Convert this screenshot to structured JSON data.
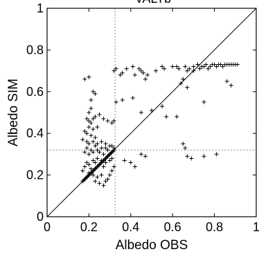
{
  "chart_data": {
    "type": "scatter",
    "title": "VALTb",
    "xlabel": "Albedo OBS",
    "ylabel": "Albedo SIM",
    "xlim": [
      0,
      1
    ],
    "ylim": [
      0,
      1
    ],
    "xticks": [
      0,
      0.2,
      0.4,
      0.6,
      0.8,
      1
    ],
    "yticks": [
      0,
      0.2,
      0.4,
      0.6,
      0.8,
      1
    ],
    "xtick_labels": [
      "0",
      "0.2",
      "0.4",
      "0.6",
      "0.8",
      "1"
    ],
    "ytick_labels": [
      "0",
      "0.2",
      "0.4",
      "0.6",
      "0.8",
      "1"
    ],
    "grid": false,
    "marker": "plus",
    "reference_line": {
      "type": "identity",
      "from": [
        0,
        0
      ],
      "to": [
        1,
        1
      ]
    },
    "mean_lines": {
      "x": 0.325,
      "y": 0.32,
      "style": "dotted"
    },
    "series": [
      {
        "points": [
          [
            0.18,
            0.66
          ],
          [
            0.2,
            0.67
          ],
          [
            0.32,
            0.7
          ],
          [
            0.33,
            0.71
          ],
          [
            0.35,
            0.68
          ],
          [
            0.36,
            0.69
          ],
          [
            0.38,
            0.71
          ],
          [
            0.41,
            0.72
          ],
          [
            0.42,
            0.68
          ],
          [
            0.44,
            0.71
          ],
          [
            0.45,
            0.7
          ],
          [
            0.46,
            0.69
          ],
          [
            0.47,
            0.66
          ],
          [
            0.48,
            0.68
          ],
          [
            0.52,
            0.7
          ],
          [
            0.55,
            0.72
          ],
          [
            0.56,
            0.71
          ],
          [
            0.6,
            0.72
          ],
          [
            0.62,
            0.72
          ],
          [
            0.63,
            0.71
          ],
          [
            0.66,
            0.72
          ],
          [
            0.67,
            0.7
          ],
          [
            0.68,
            0.71
          ],
          [
            0.7,
            0.72
          ],
          [
            0.72,
            0.73
          ],
          [
            0.73,
            0.71
          ],
          [
            0.74,
            0.72
          ],
          [
            0.75,
            0.72
          ],
          [
            0.76,
            0.73
          ],
          [
            0.77,
            0.71
          ],
          [
            0.78,
            0.72
          ],
          [
            0.79,
            0.73
          ],
          [
            0.8,
            0.73
          ],
          [
            0.81,
            0.72
          ],
          [
            0.82,
            0.73
          ],
          [
            0.83,
            0.73
          ],
          [
            0.84,
            0.72
          ],
          [
            0.85,
            0.73
          ],
          [
            0.86,
            0.73
          ],
          [
            0.87,
            0.73
          ],
          [
            0.88,
            0.73
          ],
          [
            0.89,
            0.73
          ],
          [
            0.9,
            0.73
          ],
          [
            0.91,
            0.73
          ],
          [
            0.64,
            0.64
          ],
          [
            0.65,
            0.66
          ],
          [
            0.67,
            0.62
          ],
          [
            0.7,
            0.7
          ],
          [
            0.75,
            0.55
          ],
          [
            0.86,
            0.65
          ],
          [
            0.88,
            0.63
          ],
          [
            0.21,
            0.56
          ],
          [
            0.22,
            0.6
          ],
          [
            0.23,
            0.59
          ],
          [
            0.21,
            0.52
          ],
          [
            0.2,
            0.5
          ],
          [
            0.19,
            0.47
          ],
          [
            0.2,
            0.46
          ],
          [
            0.21,
            0.45
          ],
          [
            0.22,
            0.47
          ],
          [
            0.23,
            0.48
          ],
          [
            0.25,
            0.49
          ],
          [
            0.27,
            0.47
          ],
          [
            0.29,
            0.46
          ],
          [
            0.31,
            0.45
          ],
          [
            0.32,
            0.46
          ],
          [
            0.2,
            0.43
          ],
          [
            0.22,
            0.42
          ],
          [
            0.24,
            0.43
          ],
          [
            0.18,
            0.41
          ],
          [
            0.19,
            0.4
          ],
          [
            0.21,
            0.39
          ],
          [
            0.23,
            0.38
          ],
          [
            0.17,
            0.37
          ],
          [
            0.19,
            0.36
          ],
          [
            0.2,
            0.35
          ],
          [
            0.22,
            0.36
          ],
          [
            0.24,
            0.35
          ],
          [
            0.26,
            0.36
          ],
          [
            0.28,
            0.35
          ],
          [
            0.3,
            0.34
          ],
          [
            0.33,
            0.55
          ],
          [
            0.36,
            0.56
          ],
          [
            0.41,
            0.57
          ],
          [
            0.45,
            0.5
          ],
          [
            0.5,
            0.51
          ],
          [
            0.55,
            0.53
          ],
          [
            0.37,
            0.27
          ],
          [
            0.4,
            0.26
          ],
          [
            0.42,
            0.24
          ],
          [
            0.45,
            0.3
          ],
          [
            0.47,
            0.29
          ],
          [
            0.57,
            0.48
          ],
          [
            0.62,
            0.48
          ],
          [
            0.65,
            0.35
          ],
          [
            0.66,
            0.33
          ],
          [
            0.67,
            0.29
          ],
          [
            0.69,
            0.28
          ],
          [
            0.75,
            0.29
          ],
          [
            0.81,
            0.3
          ],
          [
            0.17,
            0.22
          ],
          [
            0.18,
            0.24
          ],
          [
            0.19,
            0.26
          ],
          [
            0.2,
            0.25
          ],
          [
            0.21,
            0.23
          ],
          [
            0.22,
            0.27
          ],
          [
            0.23,
            0.26
          ],
          [
            0.24,
            0.28
          ],
          [
            0.25,
            0.25
          ],
          [
            0.26,
            0.27
          ],
          [
            0.27,
            0.24
          ],
          [
            0.28,
            0.26
          ],
          [
            0.29,
            0.29
          ],
          [
            0.3,
            0.27
          ],
          [
            0.31,
            0.28
          ],
          [
            0.18,
            0.31
          ],
          [
            0.19,
            0.33
          ],
          [
            0.2,
            0.3
          ],
          [
            0.21,
            0.32
          ],
          [
            0.22,
            0.31
          ],
          [
            0.23,
            0.34
          ],
          [
            0.24,
            0.32
          ],
          [
            0.25,
            0.31
          ],
          [
            0.26,
            0.33
          ],
          [
            0.27,
            0.3
          ],
          [
            0.28,
            0.33
          ],
          [
            0.29,
            0.32
          ],
          [
            0.3,
            0.3
          ],
          [
            0.31,
            0.34
          ],
          [
            0.32,
            0.33
          ],
          [
            0.2,
            0.21
          ],
          [
            0.22,
            0.2
          ],
          [
            0.24,
            0.19
          ],
          [
            0.26,
            0.2
          ],
          [
            0.28,
            0.17
          ],
          [
            0.3,
            0.2
          ],
          [
            0.27,
            0.15
          ],
          [
            0.25,
            0.16
          ],
          [
            0.23,
            0.17
          ],
          [
            0.29,
            0.18
          ],
          [
            0.31,
            0.22
          ],
          [
            0.32,
            0.24
          ],
          [
            0.17,
            0.17
          ],
          [
            0.175,
            0.175
          ],
          [
            0.18,
            0.18
          ],
          [
            0.185,
            0.185
          ],
          [
            0.19,
            0.19
          ],
          [
            0.195,
            0.195
          ],
          [
            0.2,
            0.2
          ],
          [
            0.205,
            0.205
          ],
          [
            0.21,
            0.21
          ],
          [
            0.215,
            0.215
          ],
          [
            0.22,
            0.22
          ],
          [
            0.225,
            0.225
          ],
          [
            0.23,
            0.23
          ],
          [
            0.235,
            0.235
          ],
          [
            0.24,
            0.24
          ],
          [
            0.245,
            0.245
          ],
          [
            0.25,
            0.25
          ],
          [
            0.255,
            0.255
          ],
          [
            0.26,
            0.26
          ],
          [
            0.265,
            0.265
          ],
          [
            0.27,
            0.27
          ],
          [
            0.275,
            0.275
          ],
          [
            0.28,
            0.28
          ],
          [
            0.285,
            0.285
          ],
          [
            0.29,
            0.29
          ],
          [
            0.295,
            0.295
          ],
          [
            0.3,
            0.3
          ],
          [
            0.305,
            0.305
          ],
          [
            0.31,
            0.31
          ],
          [
            0.315,
            0.315
          ],
          [
            0.32,
            0.32
          ]
        ]
      }
    ]
  }
}
